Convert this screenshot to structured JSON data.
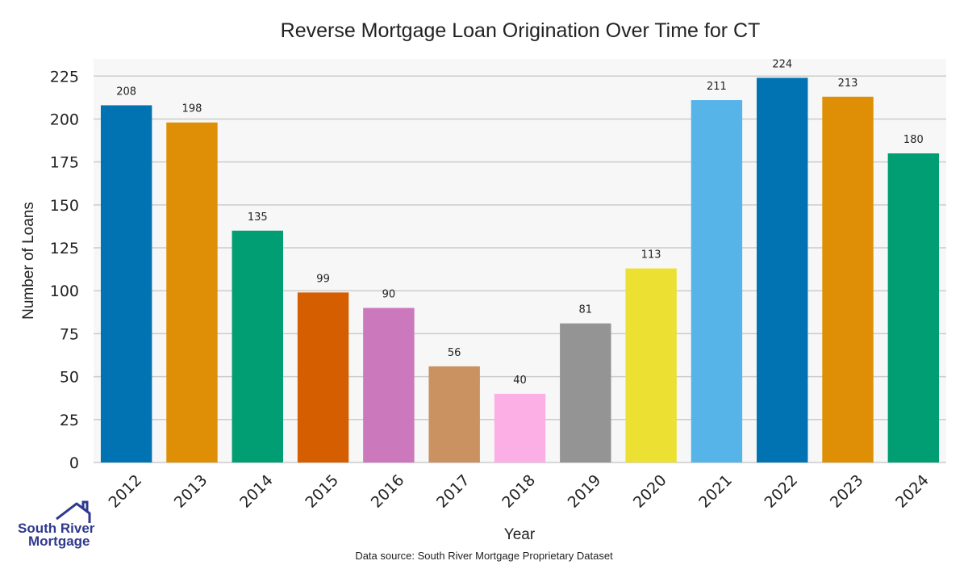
{
  "chart_data": {
    "type": "bar",
    "title": "Reverse Mortgage Loan Origination Over Time for CT",
    "xlabel": "Year",
    "ylabel": "Number of Loans",
    "categories": [
      "2012",
      "2013",
      "2014",
      "2015",
      "2016",
      "2017",
      "2018",
      "2019",
      "2020",
      "2021",
      "2022",
      "2023",
      "2024"
    ],
    "values": [
      208,
      198,
      135,
      99,
      90,
      56,
      40,
      81,
      113,
      211,
      224,
      213,
      180
    ],
    "colors": [
      "#0173b2",
      "#de8f05",
      "#029e73",
      "#d55e00",
      "#cc78bc",
      "#ca9161",
      "#fbafe4",
      "#949494",
      "#ece133",
      "#56b4e9",
      "#0173b2",
      "#de8f05",
      "#029e73"
    ],
    "ylim": [
      0,
      235
    ],
    "yticks": [
      0,
      25,
      50,
      75,
      100,
      125,
      150,
      175,
      200,
      225
    ],
    "grid": true,
    "background": "#f7f7f7",
    "grid_color": "#cccccc"
  },
  "footer": {
    "source": "Data source: South River Mortgage Proprietary Dataset"
  },
  "logo": {
    "line1": "South River",
    "line2": "Mortgage",
    "icon": "house-roof-icon",
    "color": "#2f3a8f"
  }
}
